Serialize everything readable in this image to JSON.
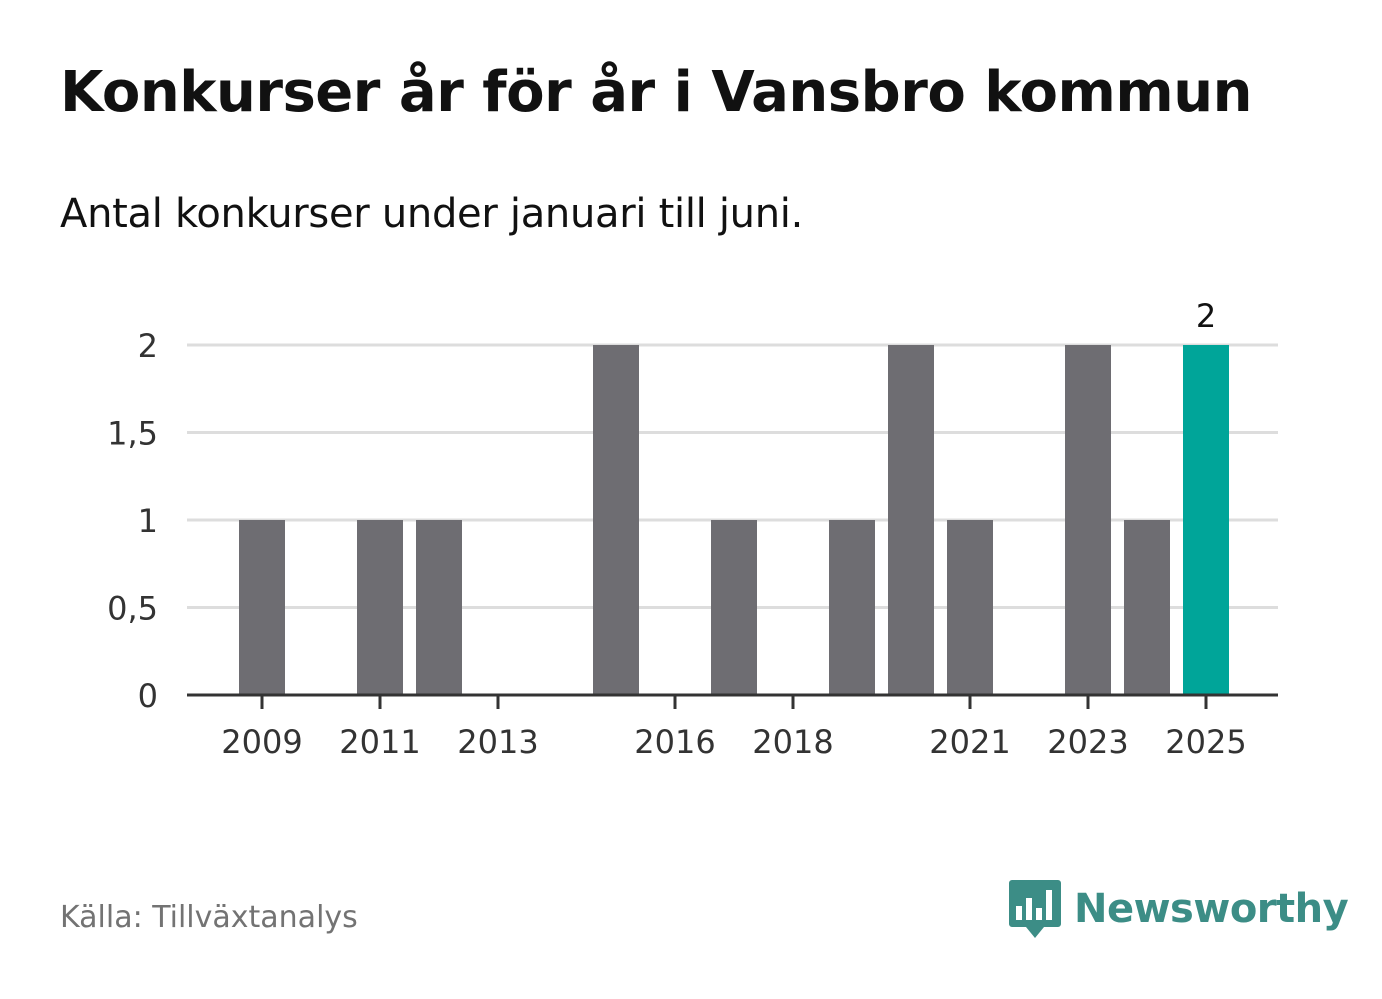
{
  "header": {
    "title": "Konkurser år för år i Vansbro kommun",
    "subtitle": "Antal konkurser under januari till juni."
  },
  "footer": {
    "source": "Källa: Tillväxtanalys",
    "brand": "Newsworthy",
    "brand_icon": "newsworthy-logo-icon"
  },
  "colors": {
    "bar": "#6e6d72",
    "highlight": "#00a599",
    "grid": "#dddddd",
    "axis": "#333333",
    "brand": "#3c8d86"
  },
  "chart_data": {
    "type": "bar",
    "title": "Konkurser år för år i Vansbro kommun",
    "subtitle": "Antal konkurser under januari till juni.",
    "categories": [
      "2009",
      "2010",
      "2011",
      "2012",
      "2013",
      "2014",
      "2015",
      "2016",
      "2017",
      "2018",
      "2019",
      "2020",
      "2021",
      "2022",
      "2023",
      "2024",
      "2025"
    ],
    "values": [
      1,
      0,
      1,
      1,
      0,
      0,
      2,
      0,
      1,
      0,
      1,
      2,
      1,
      0,
      2,
      1,
      2
    ],
    "x_tick_labels": [
      "2009",
      "2011",
      "2013",
      "2016",
      "2018",
      "2021",
      "2023",
      "2025"
    ],
    "y_ticks": [
      0,
      0.5,
      1,
      1.5,
      2
    ],
    "y_tick_labels": [
      "0",
      "0,5",
      "1",
      "1,5",
      "2"
    ],
    "ylim": [
      0,
      2
    ],
    "highlight_category": "2025",
    "data_labels": [
      {
        "category": "2025",
        "text": "2"
      }
    ],
    "grid": true,
    "legend": "none",
    "xlabel": "",
    "ylabel": ""
  }
}
